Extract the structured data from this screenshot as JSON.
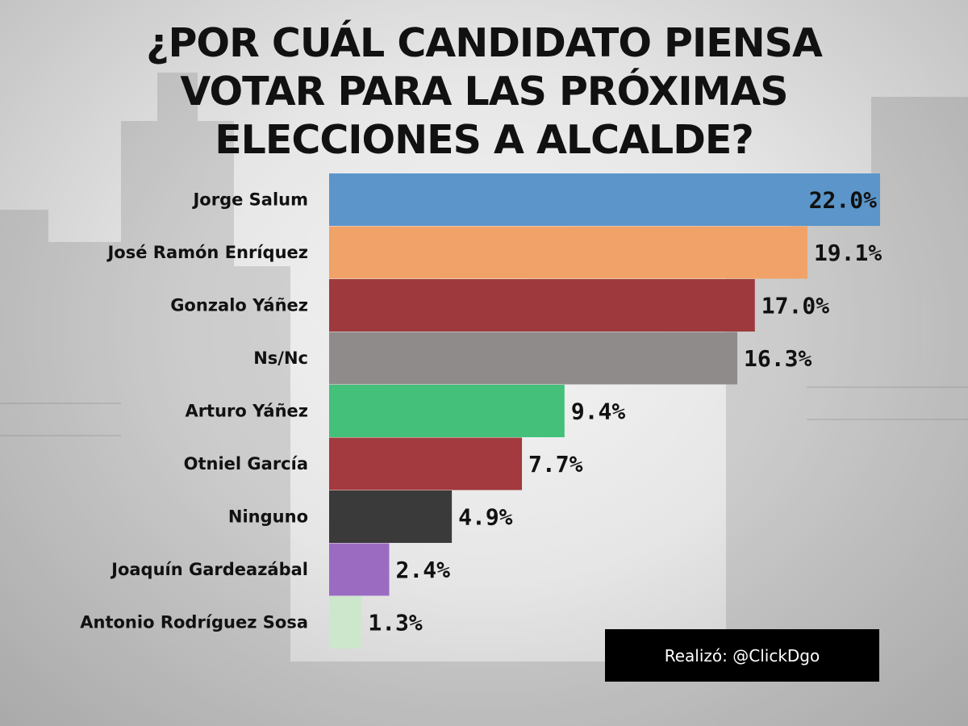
{
  "title": "¿POR CUÁL CANDIDATO PIENSA VOTAR PARA LAS PRÓXIMAS ELECCIONES A ALCALDE?",
  "credit": "Realizó: @ClickDgo",
  "chart_data": {
    "type": "bar",
    "orientation": "horizontal",
    "title": "¿POR CUÁL CANDIDATO PIENSA VOTAR PARA LAS PRÓXIMAS ELECCIONES A ALCALDE?",
    "categories": [
      "Jorge Salum",
      "José Ramón Enríquez",
      "Gonzalo Yáñez",
      "Ns/Nc",
      "Arturo Yáñez",
      "Otniel García",
      "Ninguno",
      "Joaquín Gardeazábal",
      "Antonio Rodríguez Sosa"
    ],
    "values": [
      22.0,
      19.1,
      17.0,
      16.3,
      9.4,
      7.7,
      4.9,
      2.4,
      1.3
    ],
    "value_labels": [
      "22.0%",
      "19.1%",
      "17.0%",
      "16.3%",
      "9.4%",
      "7.7%",
      "4.9%",
      "2.4%",
      "1.3%"
    ],
    "colors": [
      "#5b95c9",
      "#f0a268",
      "#9e3a3e",
      "#8f8b8b",
      "#44c07a",
      "#a23a3f",
      "#3a3a3a",
      "#9b6bc2",
      "#cde7cc"
    ],
    "unit": "%",
    "xlim": [
      0,
      22.0
    ],
    "grid": false,
    "legend": "none"
  }
}
